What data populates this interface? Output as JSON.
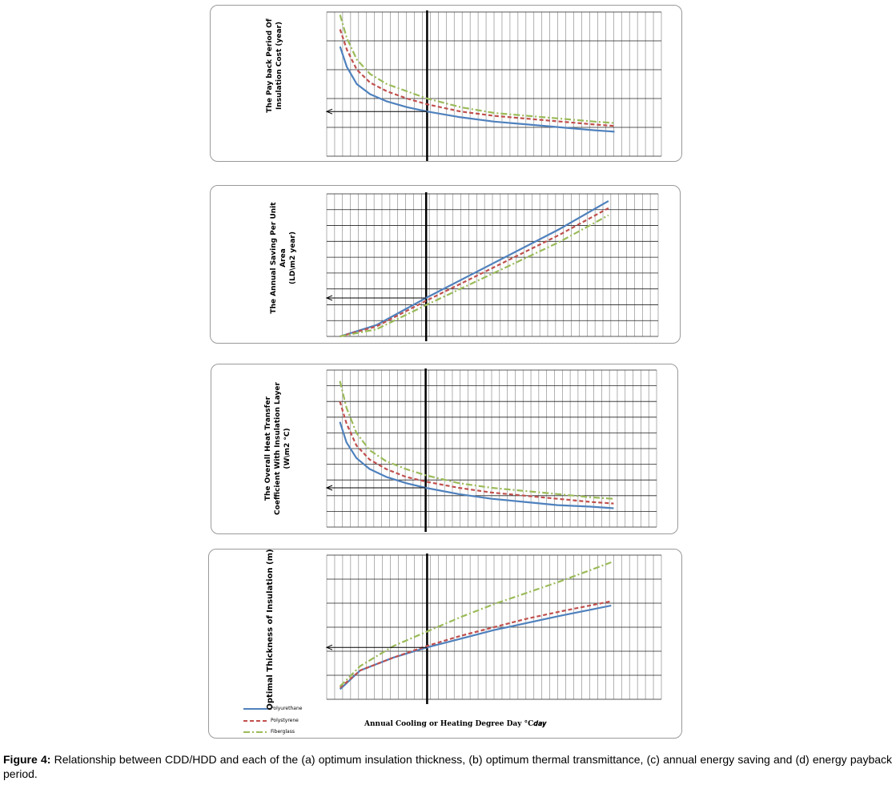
{
  "figure": {
    "caption_label": "Figure 4:",
    "caption_text": "Relationship between CDD/HDD and each of the (a) optimum insulation thickness, (b) optimum thermal transmittance, (c) annual energy saving and (d) energy payback period.",
    "x_axis_label": "Annual Cooling or Heating Degree Day °C𝒅𝒂𝒚"
  },
  "legend": [
    {
      "name": "Polyurethane",
      "color": "#4f81bd",
      "style": "solid"
    },
    {
      "name": "Polystyrene",
      "color": "#c0504d",
      "style": "dashed"
    },
    {
      "name": "Fiberglass",
      "color": "#9bbb59",
      "style": "dash-dot"
    }
  ],
  "panels": [
    {
      "id": "payback",
      "ylabel_lines": [
        "The Pay back Period Of",
        "Insulation Cost (year)"
      ]
    },
    {
      "id": "saving",
      "ylabel_lines": [
        "The Annual Saving Per Unit",
        "Area",
        "(LD\\m2 year)"
      ]
    },
    {
      "id": "transmittance",
      "ylabel_lines": [
        "The Overall Heat Transfer",
        "Coefficient With Insulation Layer",
        "(W\\m2 °C)"
      ]
    },
    {
      "id": "thickness",
      "ylabel_lines": [
        "Optimal Thickness of Insulation (m)"
      ]
    }
  ],
  "chart_data": [
    {
      "type": "line",
      "id": "payback",
      "title": "",
      "xlabel": "",
      "ylabel": "The Pay back Period Of Insulation Cost (year)",
      "grid": true,
      "xlim": [
        0,
        1
      ],
      "ylim": [
        0,
        1
      ],
      "marker_x": 0.3,
      "series": [
        {
          "name": "Polyurethane",
          "x": [
            0.04,
            0.06,
            0.09,
            0.13,
            0.18,
            0.24,
            0.3,
            0.4,
            0.5,
            0.6,
            0.7,
            0.8,
            0.86
          ],
          "y": [
            0.76,
            0.62,
            0.5,
            0.43,
            0.38,
            0.34,
            0.31,
            0.27,
            0.24,
            0.22,
            0.2,
            0.18,
            0.17
          ]
        },
        {
          "name": "Polystyrene",
          "x": [
            0.04,
            0.06,
            0.09,
            0.13,
            0.18,
            0.24,
            0.3,
            0.4,
            0.5,
            0.6,
            0.7,
            0.8,
            0.86
          ],
          "y": [
            0.88,
            0.74,
            0.6,
            0.51,
            0.45,
            0.4,
            0.36,
            0.31,
            0.28,
            0.26,
            0.24,
            0.22,
            0.21
          ]
        },
        {
          "name": "Fiberglass",
          "x": [
            0.04,
            0.06,
            0.09,
            0.13,
            0.18,
            0.24,
            0.3,
            0.4,
            0.5,
            0.6,
            0.7,
            0.8,
            0.86
          ],
          "y": [
            0.98,
            0.82,
            0.67,
            0.57,
            0.5,
            0.45,
            0.4,
            0.34,
            0.3,
            0.28,
            0.26,
            0.24,
            0.23
          ]
        }
      ]
    },
    {
      "type": "line",
      "id": "saving",
      "title": "",
      "xlabel": "",
      "ylabel": "The Annual Saving Per Unit Area (LD\\m2 year)",
      "grid": true,
      "xlim": [
        0,
        1
      ],
      "ylim": [
        0,
        1
      ],
      "marker_x": 0.3,
      "series": [
        {
          "name": "Polyurethane",
          "x": [
            0.04,
            0.15,
            0.3,
            0.5,
            0.7,
            0.85
          ],
          "y": [
            0.0,
            0.08,
            0.27,
            0.51,
            0.75,
            0.95
          ]
        },
        {
          "name": "Polystyrene",
          "x": [
            0.04,
            0.15,
            0.3,
            0.5,
            0.7,
            0.85
          ],
          "y": [
            0.0,
            0.07,
            0.25,
            0.48,
            0.71,
            0.9
          ]
        },
        {
          "name": "Fiberglass",
          "x": [
            0.04,
            0.15,
            0.3,
            0.5,
            0.7,
            0.85
          ],
          "y": [
            0.0,
            0.05,
            0.22,
            0.44,
            0.66,
            0.85
          ]
        }
      ]
    },
    {
      "type": "line",
      "id": "transmittance",
      "title": "",
      "xlabel": "",
      "ylabel": "The Overall Heat Transfer Coefficient With Insulation Layer (W\\m2 °C)",
      "grid": true,
      "xlim": [
        0,
        1
      ],
      "ylim": [
        0,
        1
      ],
      "marker_x": 0.3,
      "series": [
        {
          "name": "Polyurethane",
          "x": [
            0.04,
            0.06,
            0.09,
            0.13,
            0.18,
            0.24,
            0.3,
            0.4,
            0.5,
            0.6,
            0.7,
            0.8,
            0.87
          ],
          "y": [
            0.67,
            0.54,
            0.44,
            0.37,
            0.32,
            0.28,
            0.25,
            0.21,
            0.18,
            0.16,
            0.14,
            0.13,
            0.12
          ]
        },
        {
          "name": "Polystyrene",
          "x": [
            0.04,
            0.06,
            0.09,
            0.13,
            0.18,
            0.24,
            0.3,
            0.4,
            0.5,
            0.6,
            0.7,
            0.8,
            0.87
          ],
          "y": [
            0.8,
            0.66,
            0.52,
            0.43,
            0.37,
            0.32,
            0.29,
            0.25,
            0.22,
            0.2,
            0.18,
            0.16,
            0.15
          ]
        },
        {
          "name": "Fiberglass",
          "x": [
            0.04,
            0.06,
            0.09,
            0.13,
            0.18,
            0.24,
            0.3,
            0.4,
            0.5,
            0.6,
            0.7,
            0.8,
            0.87
          ],
          "y": [
            0.93,
            0.76,
            0.6,
            0.49,
            0.42,
            0.37,
            0.33,
            0.28,
            0.25,
            0.23,
            0.21,
            0.19,
            0.18
          ]
        }
      ]
    },
    {
      "type": "line",
      "id": "thickness",
      "title": "",
      "xlabel": "Annual Cooling or Heating Degree Day °C𝒅𝒂𝒚",
      "ylabel": "Optimal Thickness of Insulation (m)",
      "grid": true,
      "xlim": [
        0,
        1
      ],
      "ylim": [
        0,
        1
      ],
      "marker_x": 0.3,
      "series": [
        {
          "name": "Polyurethane",
          "x": [
            0.04,
            0.1,
            0.2,
            0.3,
            0.4,
            0.5,
            0.6,
            0.7,
            0.85
          ],
          "y": [
            0.07,
            0.2,
            0.29,
            0.36,
            0.42,
            0.48,
            0.53,
            0.58,
            0.65
          ]
        },
        {
          "name": "Polystyrene",
          "x": [
            0.04,
            0.1,
            0.2,
            0.3,
            0.4,
            0.5,
            0.6,
            0.7,
            0.85
          ],
          "y": [
            0.08,
            0.2,
            0.29,
            0.37,
            0.44,
            0.5,
            0.56,
            0.61,
            0.68
          ]
        },
        {
          "name": "Fiberglass",
          "x": [
            0.04,
            0.1,
            0.2,
            0.3,
            0.4,
            0.5,
            0.6,
            0.7,
            0.85
          ],
          "y": [
            0.09,
            0.23,
            0.37,
            0.47,
            0.57,
            0.66,
            0.74,
            0.82,
            0.95
          ]
        }
      ]
    }
  ]
}
